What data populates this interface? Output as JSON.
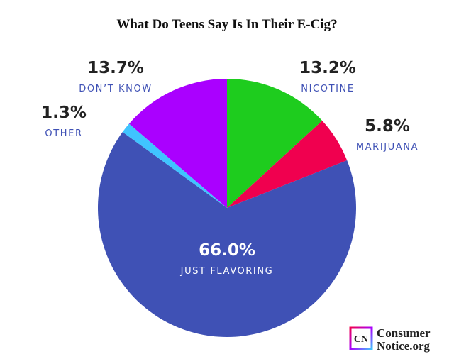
{
  "chart_data": {
    "type": "pie",
    "title": "What Do Teens Say Is In Their E-Cig?",
    "categories": [
      "NICOTINE",
      "MARIJUANA",
      "JUST FLAVORING",
      "OTHER",
      "DON’T KNOW"
    ],
    "values": [
      13.2,
      5.8,
      66.0,
      1.3,
      13.7
    ],
    "value_labels": [
      "13.2%",
      "5.8%",
      "66.0%",
      "1.3%",
      "13.7%"
    ],
    "colors": [
      "#1ecc1e",
      "#f0004f",
      "#3f51b5",
      "#40c4ff",
      "#aa00ff"
    ]
  },
  "branding": {
    "mark": "CN",
    "line1": "Consumer",
    "line2": "Notice.org"
  }
}
